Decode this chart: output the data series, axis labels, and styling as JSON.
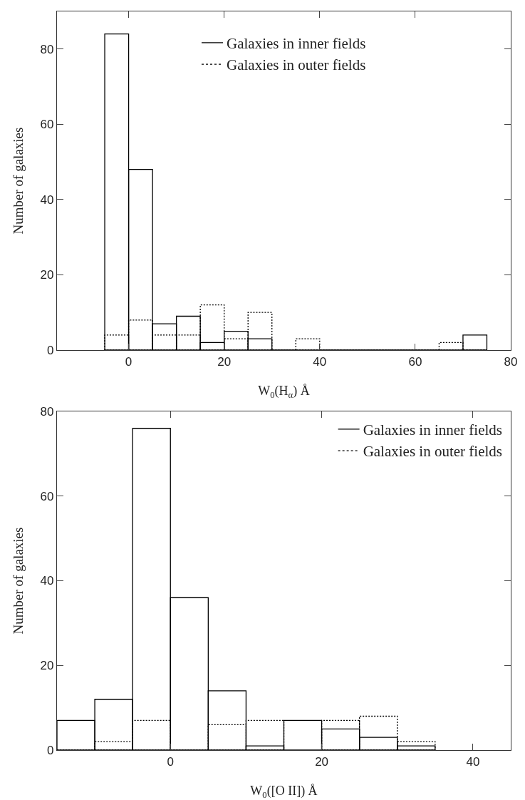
{
  "chart_data": [
    {
      "type": "histogram",
      "xlabel": "W$_{0}$(H$_{α}$) Å",
      "ylabel": "Number of galaxies",
      "bins": [
        -5,
        0,
        5,
        10,
        15,
        20,
        25,
        30,
        35,
        40,
        45,
        50,
        55,
        60,
        65,
        70,
        75
      ],
      "series": [
        {
          "name": "Galaxies in inner fields",
          "color": "#000000",
          "line_style": "solid",
          "values": [
            84,
            48,
            7,
            9,
            2,
            5,
            3,
            0,
            0,
            0,
            0,
            0,
            0,
            0,
            0,
            4
          ]
        },
        {
          "name": "Galaxies in outer fields",
          "color": "#000000",
          "line_style": "dotted",
          "values": [
            4,
            8,
            4,
            4,
            12,
            3,
            10,
            0,
            3,
            0,
            0,
            0,
            0,
            0,
            2,
            0
          ]
        }
      ],
      "xlim": [
        -15,
        80
      ],
      "xticks": [
        0,
        20,
        40,
        60,
        80
      ],
      "ylim": [
        0,
        90
      ],
      "yticks": [
        0,
        20,
        40,
        60,
        80
      ],
      "grid": false,
      "legend": "top"
    },
    {
      "type": "histogram",
      "xlabel": "W$_{0}$([O II]) Å",
      "ylabel": "Number of galaxies",
      "bins": [
        -15,
        -10,
        -5,
        0,
        5,
        10,
        15,
        20,
        25,
        30,
        35
      ],
      "series": [
        {
          "name": "Galaxies in inner fields",
          "color": "#000000",
          "line_style": "solid",
          "values": [
            7,
            12,
            76,
            36,
            14,
            1,
            7,
            5,
            3,
            1
          ]
        },
        {
          "name": "Galaxies in outer fields",
          "color": "#000000",
          "line_style": "dotted",
          "values": [
            0,
            2,
            7,
            0,
            6,
            7,
            null,
            7,
            8,
            2
          ]
        }
      ],
      "xlim": [
        -15,
        45
      ],
      "xticks": [
        0,
        20,
        40
      ],
      "ylim": [
        0,
        80
      ],
      "yticks": [
        0,
        20,
        40,
        60,
        80
      ],
      "grid": false,
      "legend": "top right"
    }
  ]
}
